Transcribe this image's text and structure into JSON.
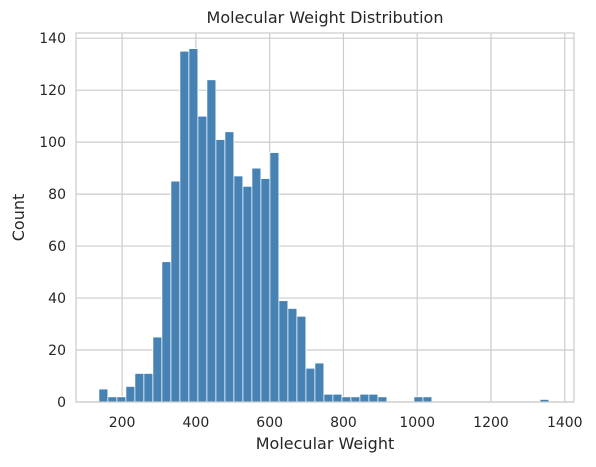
{
  "chart_data": {
    "type": "bar",
    "title": "Molecular Weight Distribution",
    "xlabel": "Molecular Weight",
    "ylabel": "Count",
    "xlim": [
      75,
      1425
    ],
    "ylim": [
      0,
      142
    ],
    "xticks": [
      200,
      400,
      600,
      800,
      1000,
      1200,
      1400
    ],
    "yticks": [
      0,
      20,
      40,
      60,
      80,
      100,
      120,
      140
    ],
    "grid": true,
    "bar_color": "#4682b4",
    "bins": {
      "start": 137,
      "width": 24.4,
      "counts": [
        5,
        2,
        2,
        6,
        11,
        11,
        25,
        54,
        85,
        135,
        136,
        110,
        124,
        101,
        104,
        87,
        83,
        90,
        86,
        96,
        39,
        36,
        33,
        13,
        15,
        3,
        3,
        2,
        2,
        3,
        3,
        2,
        0,
        0,
        0,
        2,
        2,
        0,
        0,
        0,
        0,
        0,
        0,
        0,
        0,
        0,
        0,
        0,
        0,
        1
      ]
    }
  }
}
